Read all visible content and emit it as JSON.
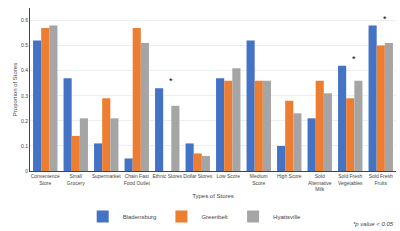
{
  "chart_data": {
    "type": "bar",
    "categories": [
      "Convenience\nStore",
      "Small\nGrocery",
      "Supermarket",
      "Chain Fast\nFood Outlet",
      "Ethnic Stores",
      "Dollar Stores",
      "Low Score",
      "Medium\nScore",
      "High Score",
      "Sold\nAlternative\nMilk",
      "Sold Fresh\nVegetables",
      "Sold Fresh\nFruits"
    ],
    "series": [
      {
        "name": "Bladensburg",
        "color": "#4472C4",
        "values": [
          0.52,
          0.37,
          0.11,
          0.05,
          0.33,
          0.11,
          0.37,
          0.52,
          0.1,
          0.21,
          0.42,
          0.58
        ]
      },
      {
        "name": "Greenbelt",
        "color": "#ED7D31",
        "values": [
          0.57,
          0.14,
          0.29,
          0.57,
          0.0,
          0.07,
          0.36,
          0.36,
          0.28,
          0.36,
          0.29,
          0.5
        ]
      },
      {
        "name": "Hyattsville",
        "color": "#A5A5A5",
        "values": [
          0.58,
          0.21,
          0.21,
          0.51,
          0.26,
          0.06,
          0.41,
          0.36,
          0.23,
          0.31,
          0.36,
          0.51
        ]
      }
    ],
    "xlabel": "Types of Stores",
    "ylabel": "Proportion of Stores",
    "ylim": [
      0,
      0.65
    ],
    "yticks": [
      0,
      0.1,
      0.2,
      0.3,
      0.4,
      0.5,
      0.6
    ],
    "grid": true,
    "legend": "bottom",
    "annotations": [
      {
        "text": "*",
        "category": "Ethnic Stores"
      },
      {
        "text": "*",
        "category": "Sold Fresh\nVegetables"
      },
      {
        "text": "*",
        "category": "Sold Fresh\nFruits"
      },
      {
        "text": "*p value < 0.05"
      }
    ]
  }
}
